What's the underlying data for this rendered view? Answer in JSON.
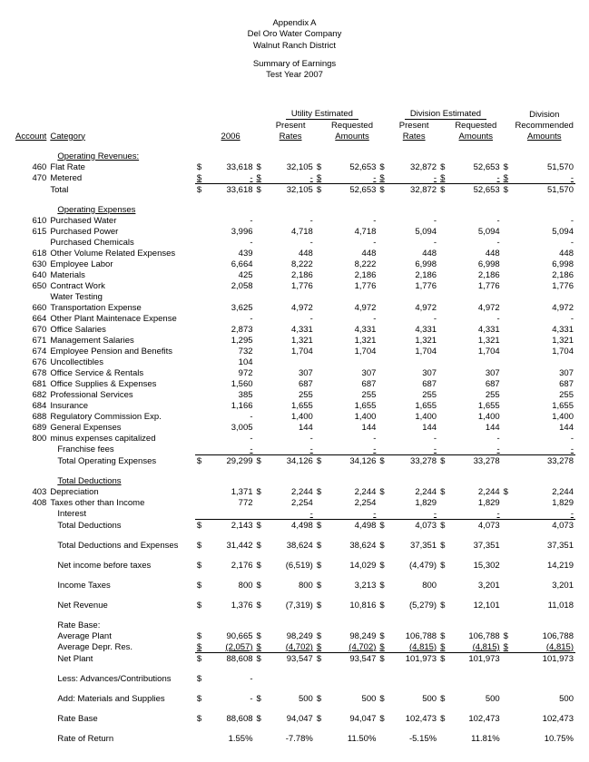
{
  "header": {
    "l1": "Appendix A",
    "l2": "Del Oro Water Company",
    "l3": "Walnut Ranch District",
    "l4": "Summary of Earnings",
    "l5": "Test Year 2007"
  },
  "groups": {
    "ue": "Utility Estimated",
    "de": "Division Estimated",
    "dr": "Division"
  },
  "cols": {
    "account": "Account",
    "category": "Category",
    "y2006": "2006",
    "present": "Present",
    "rates": "Rates",
    "requested": "Requested",
    "amounts": "Amounts",
    "recommended": "Recommended"
  },
  "sections": {
    "oprev": "Operating Revenues:",
    "opexp": "Operating Expenses",
    "totded": "Total Deductions"
  },
  "d": "$",
  "rows": [
    {
      "a": "460",
      "c": "Flat Rate",
      "v": [
        "33,618",
        "32,105",
        "52,653",
        "32,872",
        "52,653",
        "51,570"
      ],
      "d": [
        1,
        1,
        1,
        1,
        1,
        1
      ]
    },
    {
      "a": "470",
      "c": "Metered",
      "v": [
        "-",
        "-",
        "-",
        "-",
        "-",
        "-"
      ],
      "d": [
        1,
        1,
        1,
        1,
        1,
        1
      ],
      "ul": 1
    },
    {
      "a": "",
      "c": "Total",
      "v": [
        "33,618",
        "32,105",
        "52,653",
        "32,872",
        "52,653",
        "51,570"
      ],
      "d": [
        1,
        1,
        1,
        1,
        1,
        1
      ],
      "top": 1
    },
    {
      "spacer": 1
    },
    {
      "sec": "opexp"
    },
    {
      "a": "610",
      "c": "Purchased Water",
      "v": [
        "-",
        "-",
        "-",
        "-",
        "-",
        "-"
      ]
    },
    {
      "a": "615",
      "c": "Purchased Power",
      "v": [
        "3,996",
        "4,718",
        "4,718",
        "5,094",
        "5,094",
        "5,094"
      ]
    },
    {
      "a": "",
      "c": "Purchased Chemicals",
      "v": [
        "-",
        "-",
        "-",
        "-",
        "-",
        "-"
      ]
    },
    {
      "a": "618",
      "c": "Other Volume Related Expenses",
      "v": [
        "439",
        "448",
        "448",
        "448",
        "448",
        "448"
      ]
    },
    {
      "a": "630",
      "c": "Employee Labor",
      "v": [
        "6,664",
        "8,222",
        "8,222",
        "6,998",
        "6,998",
        "6,998"
      ]
    },
    {
      "a": "640",
      "c": "Materials",
      "v": [
        "425",
        "2,186",
        "2,186",
        "2,186",
        "2,186",
        "2,186"
      ]
    },
    {
      "a": "650",
      "c": "Contract Work",
      "v": [
        "2,058",
        "1,776",
        "1,776",
        "1,776",
        "1,776",
        "1,776"
      ]
    },
    {
      "a": "",
      "c": "Water Testing",
      "v": [
        "",
        "",
        "",
        "",
        "",
        ""
      ]
    },
    {
      "a": "660",
      "c": "Transportation Expense",
      "v": [
        "3,625",
        "4,972",
        "4,972",
        "4,972",
        "4,972",
        "4,972"
      ]
    },
    {
      "a": "664",
      "c": "Other Plant Maintenace Expense",
      "v": [
        "-",
        "-",
        "-",
        "-",
        "-",
        "-"
      ]
    },
    {
      "a": "670",
      "c": "Office Salaries",
      "v": [
        "2,873",
        "4,331",
        "4,331",
        "4,331",
        "4,331",
        "4,331"
      ]
    },
    {
      "a": "671",
      "c": "Management Salaries",
      "v": [
        "1,295",
        "1,321",
        "1,321",
        "1,321",
        "1,321",
        "1,321"
      ]
    },
    {
      "a": "674",
      "c": "Employee Pension and Benefits",
      "v": [
        "732",
        "1,704",
        "1,704",
        "1,704",
        "1,704",
        "1,704"
      ]
    },
    {
      "a": "676",
      "c": "Uncollectibles",
      "v": [
        "104",
        "",
        "",
        "",
        "",
        ""
      ]
    },
    {
      "a": "678",
      "c": "Office Service & Rentals",
      "v": [
        "972",
        "307",
        "307",
        "307",
        "307",
        "307"
      ]
    },
    {
      "a": "681",
      "c": "Office Supplies & Expenses",
      "v": [
        "1,560",
        "687",
        "687",
        "687",
        "687",
        "687"
      ]
    },
    {
      "a": "682",
      "c": "Professional Services",
      "v": [
        "385",
        "255",
        "255",
        "255",
        "255",
        "255"
      ]
    },
    {
      "a": "684",
      "c": "Insurance",
      "v": [
        "1,166",
        "1,655",
        "1,655",
        "1,655",
        "1,655",
        "1,655"
      ]
    },
    {
      "a": "688",
      "c": "Regulatory Commission Exp.",
      "v": [
        "-",
        "1,400",
        "1,400",
        "1,400",
        "1,400",
        "1,400"
      ]
    },
    {
      "a": "689",
      "c": "General Expenses",
      "v": [
        "3,005",
        "144",
        "144",
        "144",
        "144",
        "144"
      ]
    },
    {
      "a": "800",
      "c": "minus expenses capitalized",
      "v": [
        "-",
        "-",
        "-",
        "-",
        "-",
        "-"
      ]
    },
    {
      "a": "",
      "c": "Franchise fees",
      "v": [
        "-",
        "-",
        "-",
        "-",
        "-",
        "-"
      ],
      "ul": 1,
      "indent": 1
    },
    {
      "a": "",
      "c": "Total Operating Expenses",
      "v": [
        "29,299",
        "34,126",
        "34,126",
        "33,278",
        "33,278",
        "33,278"
      ],
      "d": [
        1,
        1,
        1,
        1,
        1,
        0
      ],
      "top": 1,
      "indent": 1
    },
    {
      "spacer": 1
    },
    {
      "sec": "totded"
    },
    {
      "a": "403",
      "c": "Depreciation",
      "v": [
        "1,371",
        "2,244",
        "2,244",
        "2,244",
        "2,244",
        "2,244"
      ],
      "d": [
        0,
        1,
        1,
        1,
        1,
        1
      ]
    },
    {
      "a": "408",
      "c": "Taxes other than Income",
      "v": [
        "772",
        "2,254",
        "2,254",
        "1,829",
        "1,829",
        "1,829"
      ]
    },
    {
      "a": "",
      "c": "Interest",
      "v": [
        "",
        "-",
        "-",
        "-",
        "-",
        "-"
      ],
      "ul": 1,
      "indent": 1
    },
    {
      "a": "",
      "c": "Total Deductions",
      "v": [
        "2,143",
        "4,498",
        "4,498",
        "4,073",
        "4,073",
        "4,073"
      ],
      "d": [
        1,
        1,
        1,
        1,
        1,
        0
      ],
      "top": 1,
      "indent": 1
    },
    {
      "spacer": 1
    },
    {
      "a": "",
      "c": "Total Deductions and Expenses",
      "v": [
        "31,442",
        "38,624",
        "38,624",
        "37,351",
        "37,351",
        "37,351"
      ],
      "d": [
        1,
        1,
        1,
        1,
        1,
        0
      ],
      "indent": 1
    },
    {
      "spacer": 1
    },
    {
      "a": "",
      "c": "Net income before taxes",
      "v": [
        "2,176",
        "(6,519)",
        "14,029",
        "(4,479)",
        "15,302",
        "14,219"
      ],
      "d": [
        1,
        1,
        1,
        1,
        1,
        0
      ],
      "indent": 1
    },
    {
      "spacer": 1
    },
    {
      "a": "",
      "c": "Income Taxes",
      "v": [
        "800",
        "800",
        "3,213",
        "800",
        "3,201",
        "3,201"
      ],
      "d": [
        1,
        1,
        1,
        1,
        0,
        0
      ],
      "indent": 1
    },
    {
      "spacer": 1
    },
    {
      "a": "",
      "c": "Net Revenue",
      "v": [
        "1,376",
        "(7,319)",
        "10,816",
        "(5,279)",
        "12,101",
        "11,018"
      ],
      "d": [
        1,
        1,
        1,
        1,
        1,
        0
      ],
      "indent": 1
    },
    {
      "spacer": 1
    },
    {
      "a": "",
      "c": "Rate Base:",
      "v": [
        "",
        "",
        "",
        "",
        "",
        ""
      ],
      "indent": 1
    },
    {
      "a": "",
      "c": "Average Plant",
      "v": [
        "90,665",
        "98,249",
        "98,249",
        "106,788",
        "106,788",
        "106,788"
      ],
      "d": [
        1,
        1,
        1,
        1,
        1,
        1
      ],
      "indent": 1
    },
    {
      "a": "",
      "c": "Average Depr. Res.",
      "v": [
        "(2,057)",
        "(4,702)",
        "(4,702)",
        "(4,815)",
        "(4,815)",
        "(4,815)"
      ],
      "d": [
        1,
        1,
        1,
        1,
        1,
        1
      ],
      "ul": 1,
      "indent": 1
    },
    {
      "a": "",
      "c": "Net Plant",
      "v": [
        "88,608",
        "93,547",
        "93,547",
        "101,973",
        "101,973",
        "101,973"
      ],
      "d": [
        1,
        1,
        1,
        1,
        1,
        0
      ],
      "top": 1,
      "indent": 1
    },
    {
      "spacer": 1
    },
    {
      "a": "",
      "c": "Less: Advances/Contributions",
      "v": [
        "-",
        "",
        "",
        "",
        "",
        ""
      ],
      "d": [
        1,
        0,
        0,
        0,
        0,
        0
      ],
      "indent": 1
    },
    {
      "spacer": 1
    },
    {
      "a": "",
      "c": "Add: Materials and Supplies",
      "v": [
        "-",
        "500",
        "500",
        "500",
        "500",
        "500"
      ],
      "d": [
        1,
        1,
        1,
        1,
        1,
        0
      ],
      "indent": 1
    },
    {
      "spacer": 1
    },
    {
      "a": "",
      "c": "Rate Base",
      "v": [
        "88,608",
        "94,047",
        "94,047",
        "102,473",
        "102,473",
        "102,473"
      ],
      "d": [
        1,
        1,
        1,
        1,
        1,
        0
      ],
      "indent": 1
    },
    {
      "spacer": 1
    },
    {
      "a": "",
      "c": "Rate of Return",
      "v": [
        "1.55%",
        "-7.78%",
        "11.50%",
        "-5.15%",
        "11.81%",
        "10.75%"
      ],
      "indent": 1
    }
  ]
}
